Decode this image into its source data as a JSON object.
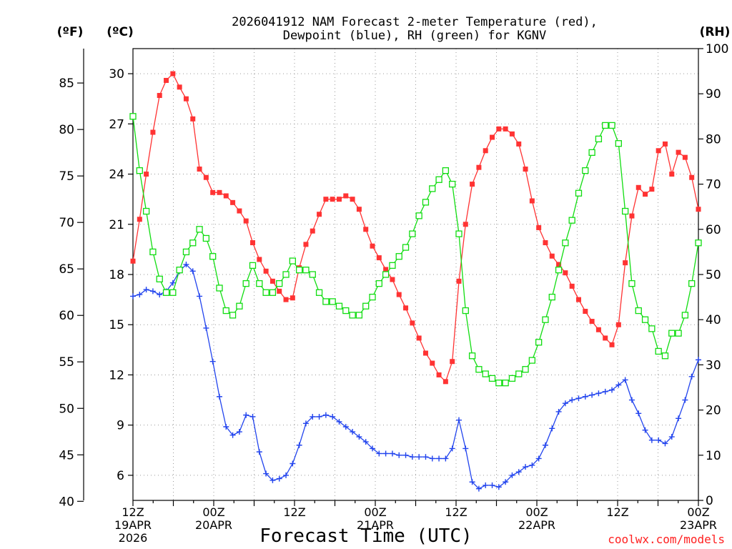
{
  "chart_data": {
    "type": "line",
    "title_line1": "2026041912 NAM Forecast 2-meter Temperature (red),",
    "title_line2": "Dewpoint (blue), RH (green) for KGNV",
    "xlabel": "Forecast Time (UTC)",
    "credit": "coolwx.com/models",
    "units": {
      "fahrenheit": "(ºF)",
      "celsius": "(ºC)",
      "rh": "(RH)"
    },
    "x_hours_range": [
      0,
      84
    ],
    "y_celsius_range": [
      4.5,
      31.5
    ],
    "y_rh_range": [
      0,
      100
    ],
    "fahrenheit_ticks": [
      "40",
      "45",
      "50",
      "55",
      "60",
      "65",
      "70",
      "75",
      "80",
      "85"
    ],
    "celsius_ticks": [
      "6",
      "9",
      "12",
      "15",
      "18",
      "21",
      "24",
      "27",
      "30"
    ],
    "rh_ticks": [
      "0",
      "10",
      "20",
      "30",
      "40",
      "50",
      "60",
      "70",
      "80",
      "90",
      "100"
    ],
    "x_ticks": [
      {
        "hour": 0,
        "lines": [
          "12Z",
          "19APR",
          "2026"
        ]
      },
      {
        "hour": 12,
        "lines": [
          "00Z",
          "20APR"
        ]
      },
      {
        "hour": 24,
        "lines": [
          "12Z"
        ]
      },
      {
        "hour": 36,
        "lines": [
          "00Z",
          "21APR"
        ]
      },
      {
        "hour": 48,
        "lines": [
          "12Z"
        ]
      },
      {
        "hour": 60,
        "lines": [
          "00Z",
          "22APR"
        ]
      },
      {
        "hour": 72,
        "lines": [
          "12Z"
        ]
      },
      {
        "hour": 84,
        "lines": [
          "00Z",
          "23APR"
        ]
      }
    ],
    "series": [
      {
        "name": "2-meter Temperature",
        "unit": "C",
        "color": "#ff3333",
        "marker": "filled-square",
        "values": [
          18.8,
          21.3,
          24.0,
          26.5,
          28.7,
          29.6,
          30.0,
          29.2,
          28.5,
          27.3,
          24.3,
          23.8,
          22.9,
          22.9,
          22.7,
          22.3,
          21.8,
          21.2,
          19.9,
          18.9,
          18.2,
          17.6,
          17.0,
          16.5,
          16.6,
          18.4,
          19.8,
          20.6,
          21.6,
          22.5,
          22.5,
          22.5,
          22.7,
          22.5,
          21.9,
          20.7,
          19.7,
          19.0,
          18.3,
          17.7,
          16.8,
          16.0,
          15.1,
          14.2,
          13.3,
          12.7,
          12.0,
          11.6,
          12.8,
          17.6,
          21.0,
          23.4,
          24.4,
          25.4,
          26.2,
          26.7,
          26.7,
          26.4,
          25.8,
          24.3,
          22.4,
          20.8,
          19.9,
          19.1,
          18.6,
          18.1,
          17.3,
          16.5,
          15.8,
          15.2,
          14.7,
          14.2,
          13.8,
          15.0,
          18.7,
          21.5,
          23.2,
          22.8,
          23.1,
          25.4,
          25.8,
          24.0,
          25.3,
          25.0,
          23.8,
          21.9
        ]
      },
      {
        "name": "Dewpoint",
        "unit": "C",
        "color": "#2244ee",
        "marker": "plus",
        "values": [
          16.7,
          16.8,
          17.1,
          17.0,
          16.8,
          17.0,
          17.5,
          18.2,
          18.6,
          18.2,
          16.7,
          14.8,
          12.8,
          10.7,
          8.9,
          8.4,
          8.6,
          9.6,
          9.5,
          7.4,
          6.1,
          5.7,
          5.8,
          6.0,
          6.7,
          7.8,
          9.1,
          9.5,
          9.5,
          9.6,
          9.5,
          9.2,
          8.9,
          8.6,
          8.3,
          8.0,
          7.6,
          7.3,
          7.3,
          7.3,
          7.2,
          7.2,
          7.1,
          7.1,
          7.1,
          7.0,
          7.0,
          7.0,
          7.6,
          9.3,
          7.6,
          5.6,
          5.2,
          5.4,
          5.4,
          5.3,
          5.6,
          6.0,
          6.2,
          6.5,
          6.6,
          7.0,
          7.8,
          8.8,
          9.8,
          10.3,
          10.5,
          10.6,
          10.7,
          10.8,
          10.9,
          11.0,
          11.1,
          11.4,
          11.7,
          10.5,
          9.7,
          8.7,
          8.1,
          8.1,
          7.9,
          8.3,
          9.4,
          10.5,
          11.9,
          12.9
        ]
      },
      {
        "name": "RH",
        "unit": "%",
        "color": "#11dd11",
        "marker": "open-square",
        "values": [
          85,
          73,
          64,
          55,
          49,
          46,
          46,
          51,
          55,
          57,
          60,
          58,
          54,
          47,
          42,
          41,
          43,
          48,
          52,
          48,
          46,
          46,
          48,
          50,
          53,
          51,
          51,
          50,
          46,
          44,
          44,
          43,
          42,
          41,
          41,
          43,
          45,
          48,
          50,
          52,
          54,
          56,
          59,
          63,
          66,
          69,
          71,
          73,
          70,
          59,
          42,
          32,
          29,
          28,
          27,
          26,
          26,
          27,
          28,
          29,
          31,
          35,
          40,
          45,
          51,
          57,
          62,
          68,
          73,
          77,
          80,
          83,
          83,
          79,
          64,
          48,
          42,
          40,
          38,
          33,
          32,
          37,
          37,
          41,
          48,
          57
        ]
      }
    ]
  }
}
